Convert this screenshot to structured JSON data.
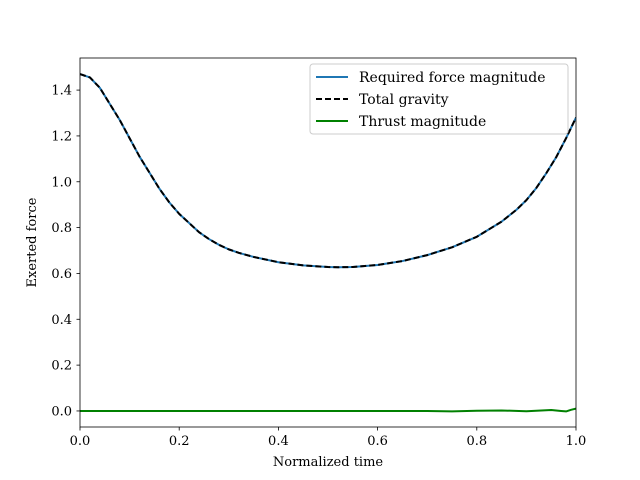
{
  "chart_data": {
    "type": "line",
    "xlabel": "Normalized time",
    "ylabel": "Exerted force",
    "xlim": [
      0.0,
      1.0
    ],
    "ylim": [
      -0.07,
      1.54
    ],
    "xticks": [
      "0.0",
      "0.2",
      "0.4",
      "0.6",
      "0.8",
      "1.0"
    ],
    "yticks": [
      "0.0",
      "0.2",
      "0.4",
      "0.6",
      "0.8",
      "1.0",
      "1.2",
      "1.4"
    ],
    "grid": false,
    "legend_position": "top-right",
    "series": [
      {
        "name": "Required force magnitude",
        "color": "#1f77b4",
        "style": "solid",
        "x": [
          0.0,
          0.02,
          0.04,
          0.06,
          0.08,
          0.1,
          0.12,
          0.14,
          0.16,
          0.18,
          0.2,
          0.22,
          0.24,
          0.26,
          0.28,
          0.3,
          0.32,
          0.35,
          0.4,
          0.45,
          0.5,
          0.52,
          0.55,
          0.6,
          0.65,
          0.7,
          0.75,
          0.8,
          0.85,
          0.88,
          0.9,
          0.92,
          0.94,
          0.96,
          0.98,
          1.0
        ],
        "y": [
          1.47,
          1.455,
          1.41,
          1.34,
          1.27,
          1.19,
          1.11,
          1.04,
          0.97,
          0.91,
          0.86,
          0.82,
          0.78,
          0.75,
          0.725,
          0.705,
          0.69,
          0.672,
          0.649,
          0.635,
          0.628,
          0.627,
          0.628,
          0.637,
          0.654,
          0.68,
          0.714,
          0.76,
          0.826,
          0.878,
          0.92,
          0.973,
          1.037,
          1.107,
          1.19,
          1.28
        ]
      },
      {
        "name": "Total gravity",
        "color": "#000000",
        "style": "dashed",
        "x": [
          0.0,
          0.02,
          0.04,
          0.06,
          0.08,
          0.1,
          0.12,
          0.14,
          0.16,
          0.18,
          0.2,
          0.22,
          0.24,
          0.26,
          0.28,
          0.3,
          0.32,
          0.35,
          0.4,
          0.45,
          0.5,
          0.52,
          0.55,
          0.6,
          0.65,
          0.7,
          0.75,
          0.8,
          0.85,
          0.88,
          0.9,
          0.92,
          0.94,
          0.96,
          0.98,
          1.0
        ],
        "y": [
          1.47,
          1.455,
          1.41,
          1.34,
          1.27,
          1.19,
          1.11,
          1.04,
          0.97,
          0.91,
          0.86,
          0.82,
          0.78,
          0.75,
          0.725,
          0.705,
          0.69,
          0.672,
          0.649,
          0.635,
          0.628,
          0.627,
          0.628,
          0.637,
          0.654,
          0.68,
          0.714,
          0.76,
          0.826,
          0.878,
          0.92,
          0.973,
          1.037,
          1.107,
          1.19,
          1.28
        ]
      },
      {
        "name": "Thrust magnitude",
        "color": "#008000",
        "style": "solid",
        "x": [
          0.0,
          0.1,
          0.2,
          0.3,
          0.4,
          0.5,
          0.6,
          0.7,
          0.75,
          0.8,
          0.85,
          0.9,
          0.93,
          0.95,
          0.97,
          0.98,
          0.99,
          1.0
        ],
        "y": [
          0.0,
          0.0,
          0.0,
          0.0,
          0.0,
          0.0,
          0.0,
          0.0,
          -0.002,
          0.001,
          0.002,
          -0.001,
          0.002,
          0.004,
          0.0,
          -0.002,
          0.005,
          0.01
        ]
      }
    ]
  }
}
